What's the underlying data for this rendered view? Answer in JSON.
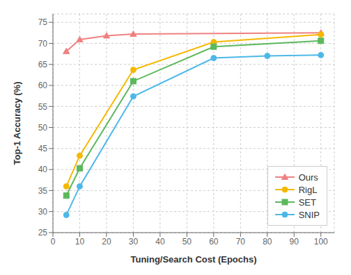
{
  "chart_data": {
    "type": "line",
    "xlabel": "Tuning/Search Cost (Epochs)",
    "ylabel": "Top-1 Accuracy (%)",
    "xlim": [
      0,
      105
    ],
    "ylim": [
      25,
      77
    ],
    "xticks": [
      0,
      10,
      20,
      30,
      40,
      50,
      60,
      70,
      80,
      90,
      100
    ],
    "yticks": [
      25,
      30,
      35,
      40,
      45,
      50,
      55,
      60,
      65,
      70,
      75
    ],
    "series": [
      {
        "name": "Ours",
        "color": "#f08080",
        "marker": "triangle",
        "x": [
          5,
          10,
          20,
          30,
          100
        ],
        "values": [
          68.1,
          70.9,
          71.8,
          72.2,
          72.5
        ]
      },
      {
        "name": "RigL",
        "color": "#f5b800",
        "marker": "circle",
        "x": [
          5,
          10,
          30,
          60,
          100
        ],
        "values": [
          36.0,
          43.3,
          63.7,
          70.3,
          72.1
        ]
      },
      {
        "name": "SET",
        "color": "#5cb85c",
        "marker": "square",
        "x": [
          5,
          10,
          30,
          60,
          100
        ],
        "values": [
          33.8,
          40.3,
          61.0,
          69.2,
          70.6
        ]
      },
      {
        "name": "SNIP",
        "color": "#4db8e8",
        "marker": "circle",
        "x": [
          5,
          10,
          30,
          60,
          80,
          100
        ],
        "values": [
          29.2,
          36.0,
          57.4,
          66.5,
          67.0,
          67.2
        ]
      }
    ],
    "legend": "lower right",
    "grid": true
  }
}
